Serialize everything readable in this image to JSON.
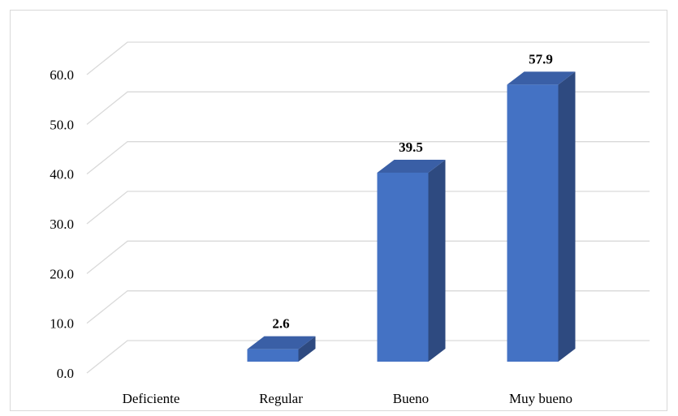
{
  "chart_data": {
    "type": "bar",
    "categories": [
      "Deficiente",
      "Regular",
      "Bueno",
      "Muy bueno"
    ],
    "values": [
      0,
      2.6,
      39.5,
      57.9
    ],
    "data_labels": [
      "",
      "2.6",
      "39.5",
      "57.9"
    ],
    "y_ticks": [
      "0.0",
      "10.0",
      "20.0",
      "30.0",
      "40.0",
      "50.0",
      "60.0"
    ],
    "ylim": [
      0,
      60
    ],
    "title": "",
    "xlabel": "",
    "ylabel": "",
    "grid": true,
    "style": "3d-column",
    "colors": {
      "front": "#4472C4",
      "side": "#2E4A80",
      "top": "#3A5FA6",
      "grid": "#d9d9d9"
    }
  }
}
